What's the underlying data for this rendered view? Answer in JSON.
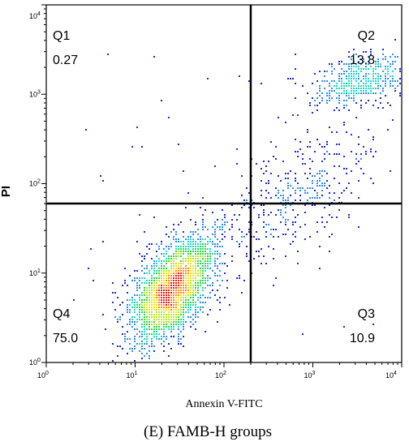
{
  "chart_data": {
    "type": "scatter",
    "subtype": "flow-cytometry-density-dot-plot",
    "title": "",
    "caption": "(E) FAMB-H groups",
    "xlabel": "Annexin V-FITC",
    "ylabel": "PI",
    "x_scale": "log",
    "y_scale": "log",
    "xlim": [
      1,
      10000
    ],
    "ylim": [
      1,
      10000
    ],
    "x_ticks": [
      {
        "base": "10",
        "exp": "0",
        "value": 1
      },
      {
        "base": "10",
        "exp": "1",
        "value": 10
      },
      {
        "base": "10",
        "exp": "2",
        "value": 100
      },
      {
        "base": "10",
        "exp": "3",
        "value": 1000
      },
      {
        "base": "10",
        "exp": "4",
        "value": 10000
      }
    ],
    "y_ticks": [
      {
        "base": "10",
        "exp": "0",
        "value": 1
      },
      {
        "base": "10",
        "exp": "1",
        "value": 10
      },
      {
        "base": "10",
        "exp": "2",
        "value": 100
      },
      {
        "base": "10",
        "exp": "3",
        "value": 1000
      },
      {
        "base": "10",
        "exp": "4",
        "value": 10000
      }
    ],
    "gate": {
      "x": 200,
      "y": 60
    },
    "quadrants": [
      {
        "name": "Q1",
        "value": "0.27",
        "position": "top-left"
      },
      {
        "name": "Q2",
        "value": "13.8",
        "position": "top-right"
      },
      {
        "name": "Q3",
        "value": "10.9",
        "position": "bottom-right"
      },
      {
        "name": "Q4",
        "value": "75.0",
        "position": "bottom-left"
      }
    ],
    "populations": [
      {
        "x": 25,
        "y": 6,
        "sx": 0.24,
        "sy": 0.3,
        "rho": 0.55,
        "weight": 0.66
      },
      {
        "x": 45,
        "y": 12,
        "sx": 0.18,
        "sy": 0.22,
        "rho": 0.5,
        "weight": 0.09
      },
      {
        "x": 700,
        "y": 80,
        "sx": 0.45,
        "sy": 0.4,
        "rho": 0.7,
        "weight": 0.11
      },
      {
        "x": 3500,
        "y": 1400,
        "sx": 0.28,
        "sy": 0.16,
        "rho": 0.45,
        "weight": 0.14
      }
    ],
    "density_colors": [
      "#1a2ad8",
      "#2f8df5",
      "#24d8c9",
      "#2ed84a",
      "#b9e62c",
      "#f3e51f",
      "#ff8a1d",
      "#e8201a"
    ],
    "grid": false,
    "legend": "none"
  }
}
